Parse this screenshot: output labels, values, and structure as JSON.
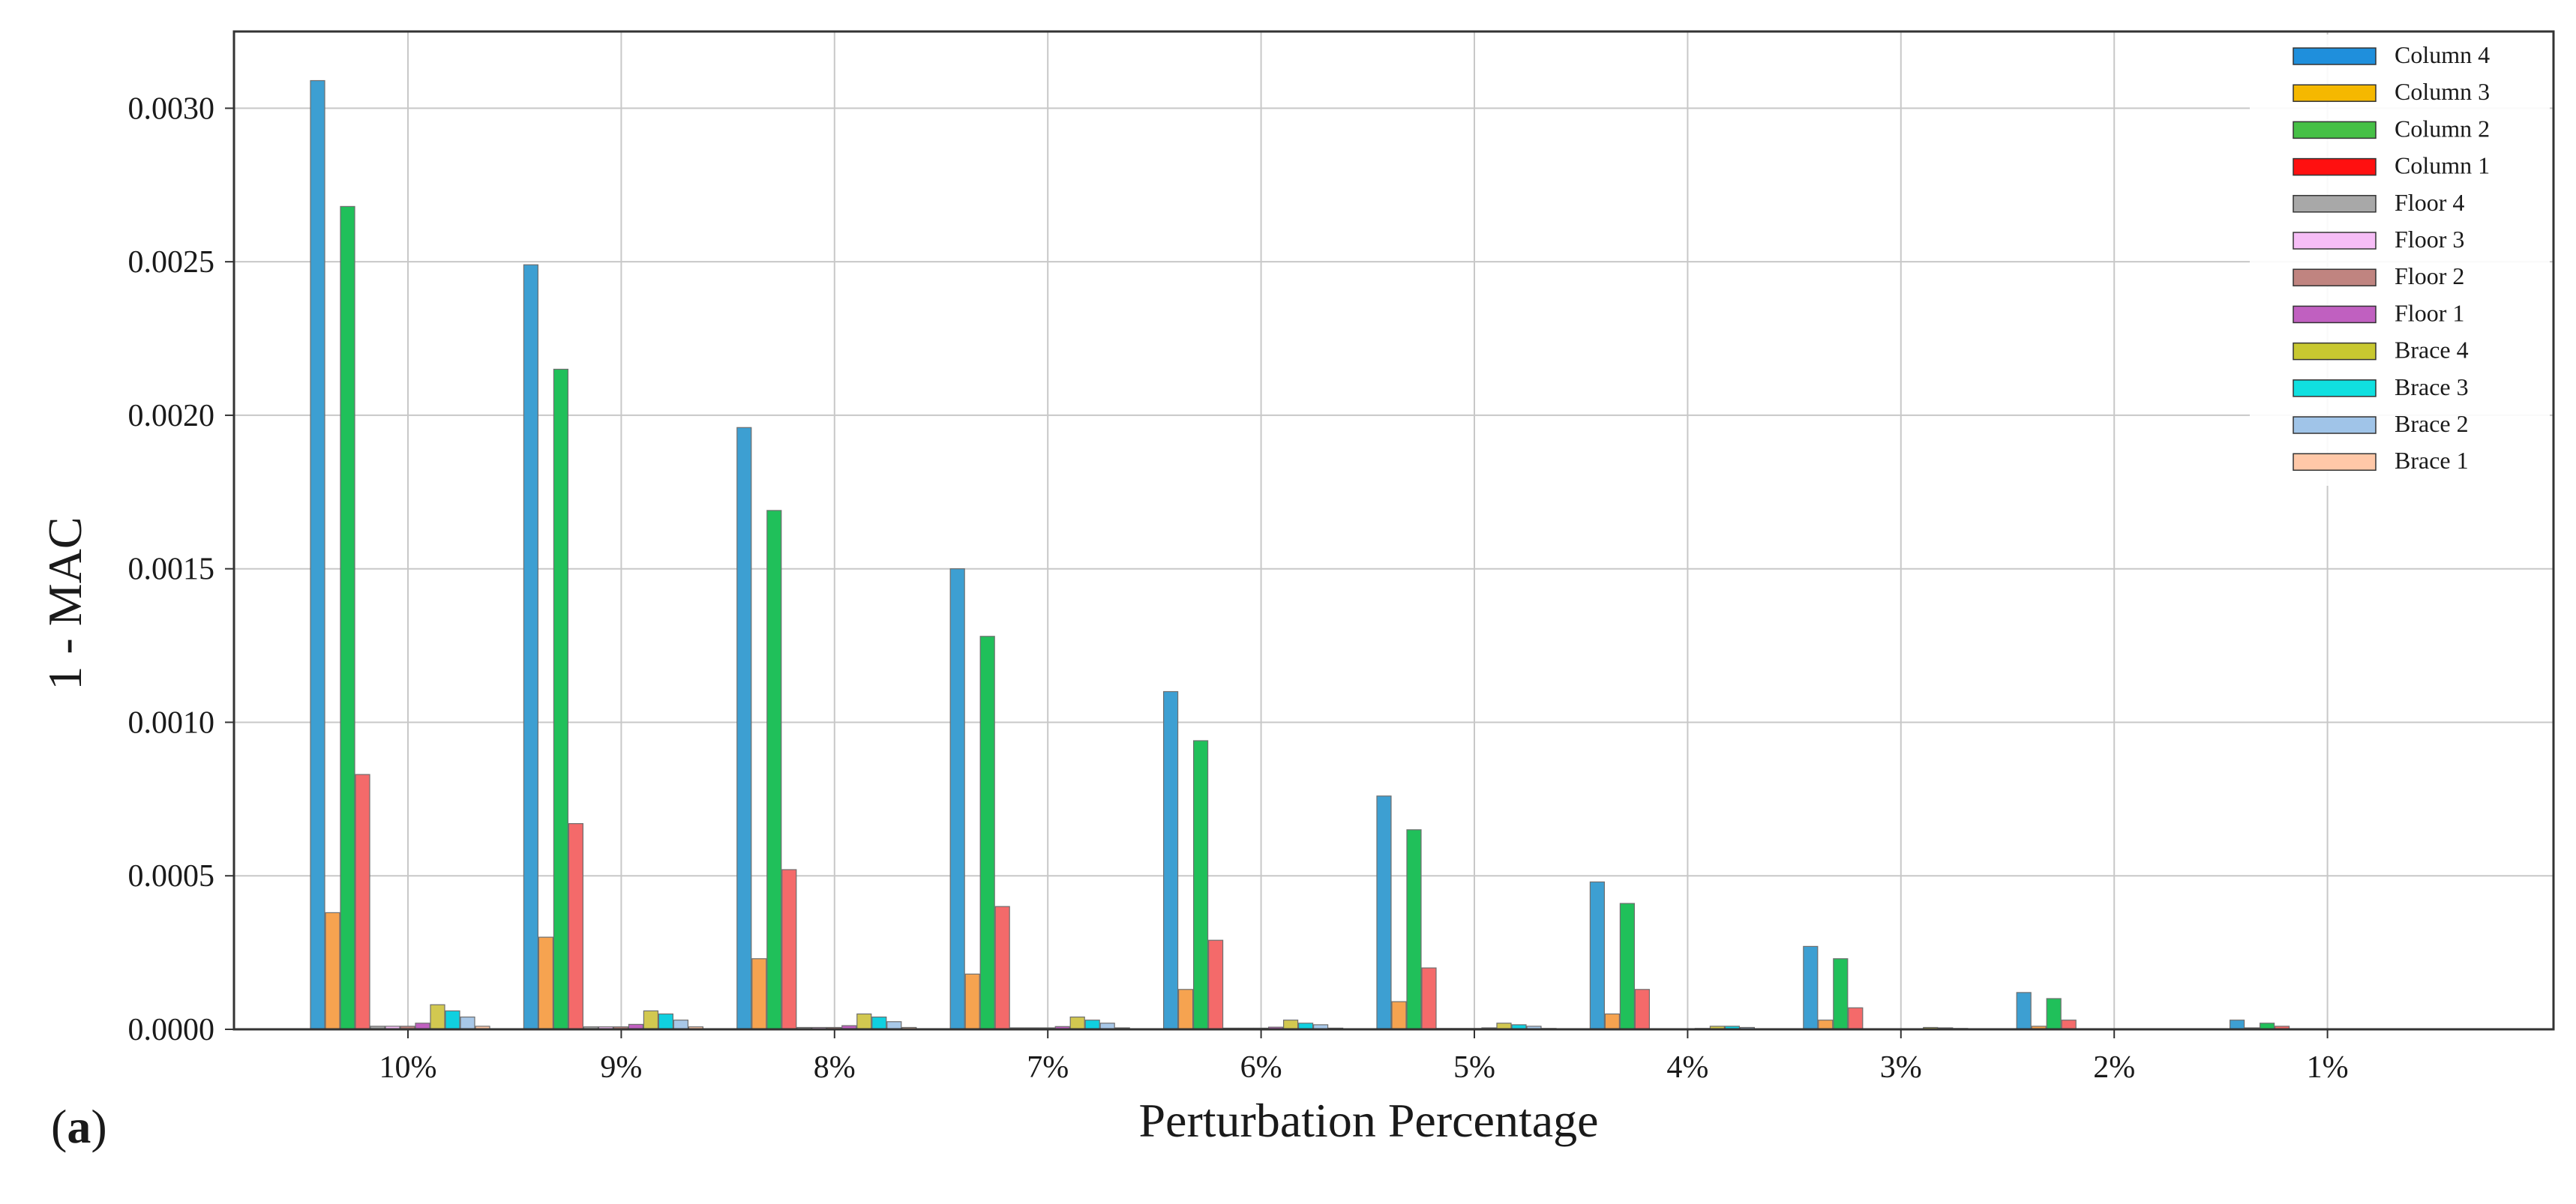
{
  "panel_label": "(a)",
  "panel_letter": "a",
  "colors": {
    "grid": "#c8c8c8",
    "axis": "#333333",
    "bar_stroke": "#6e6e6e"
  },
  "chart_data": {
    "type": "bar",
    "title": "",
    "xlabel": "Perturbation Percentage",
    "ylabel": "1 - MAC",
    "ylim": [
      0,
      0.00325
    ],
    "yticks": [
      0.0,
      0.0005,
      0.001,
      0.0015,
      0.002,
      0.0025,
      0.003
    ],
    "ytick_labels": [
      "0.0000",
      "0.0005",
      "0.0010",
      "0.0015",
      "0.0020",
      "0.0025",
      "0.0030"
    ],
    "grid": true,
    "legend_position": "top-right",
    "categories": [
      "10%",
      "9%",
      "8%",
      "7%",
      "6%",
      "5%",
      "4%",
      "3%",
      "2%",
      "1%"
    ],
    "series": [
      {
        "name": "Column 4",
        "legend_color": "#1f8fdc",
        "bar_color": "#3d9fd2",
        "values": [
          0.00309,
          0.00249,
          0.00196,
          0.0015,
          0.0011,
          0.00076,
          0.00048,
          0.00027,
          0.00012,
          3e-05
        ]
      },
      {
        "name": "Column 3",
        "legend_color": "#f5b800",
        "bar_color": "#f6a350",
        "values": [
          0.00038,
          0.0003,
          0.00023,
          0.00018,
          0.00013,
          9e-05,
          5e-05,
          3e-05,
          1e-05,
          5e-06
        ]
      },
      {
        "name": "Column 2",
        "legend_color": "#46c046",
        "bar_color": "#20c05a",
        "values": [
          0.00268,
          0.00215,
          0.00169,
          0.00128,
          0.00094,
          0.00065,
          0.00041,
          0.00023,
          0.0001,
          2e-05
        ]
      },
      {
        "name": "Column 1",
        "legend_color": "#ff1010",
        "bar_color": "#f46a6a",
        "values": [
          0.00083,
          0.00067,
          0.00052,
          0.0004,
          0.00029,
          0.0002,
          0.00013,
          7e-05,
          3e-05,
          1e-05
        ]
      },
      {
        "name": "Floor 4",
        "legend_color": "#a8a8a8",
        "bar_color": "#a8a8a8",
        "values": [
          1e-05,
          8e-06,
          6e-06,
          5e-06,
          4e-06,
          3e-06,
          2e-06,
          1e-06,
          5e-07,
          0
        ]
      },
      {
        "name": "Floor 3",
        "legend_color": "#f6bdf6",
        "bar_color": "#f6bdf6",
        "values": [
          1e-05,
          8e-06,
          6e-06,
          5e-06,
          4e-06,
          3e-06,
          2e-06,
          1e-06,
          5e-07,
          0
        ]
      },
      {
        "name": "Floor 2",
        "legend_color": "#c08480",
        "bar_color": "#c08480",
        "values": [
          1e-05,
          8e-06,
          6e-06,
          5e-06,
          4e-06,
          3e-06,
          2e-06,
          1e-06,
          5e-07,
          0
        ]
      },
      {
        "name": "Floor 1",
        "legend_color": "#c060c0",
        "bar_color": "#c060c0",
        "values": [
          2e-05,
          1.6e-05,
          1.2e-05,
          9e-06,
          7e-06,
          5e-06,
          3e-06,
          2e-06,
          1e-06,
          0
        ]
      },
      {
        "name": "Brace 4",
        "legend_color": "#c8c830",
        "bar_color": "#d2c850",
        "values": [
          8e-05,
          6e-05,
          5e-05,
          4e-05,
          3e-05,
          2e-05,
          1e-05,
          6e-06,
          2e-06,
          0
        ]
      },
      {
        "name": "Brace 3",
        "legend_color": "#10e0e0",
        "bar_color": "#10d0e0",
        "values": [
          6e-05,
          5e-05,
          4e-05,
          3e-05,
          2e-05,
          1.5e-05,
          1e-05,
          5e-06,
          2e-06,
          0
        ]
      },
      {
        "name": "Brace 2",
        "legend_color": "#a0c4e8",
        "bar_color": "#a8c8e8",
        "values": [
          4e-05,
          3e-05,
          2.5e-05,
          2e-05,
          1.5e-05,
          1e-05,
          6e-06,
          3e-06,
          1e-06,
          0
        ]
      },
      {
        "name": "Brace 1",
        "legend_color": "#ffc8a8",
        "bar_color": "#ffc8a8",
        "values": [
          1e-05,
          8e-06,
          6e-06,
          5e-06,
          4e-06,
          3e-06,
          2e-06,
          1e-06,
          5e-07,
          0
        ]
      }
    ]
  }
}
